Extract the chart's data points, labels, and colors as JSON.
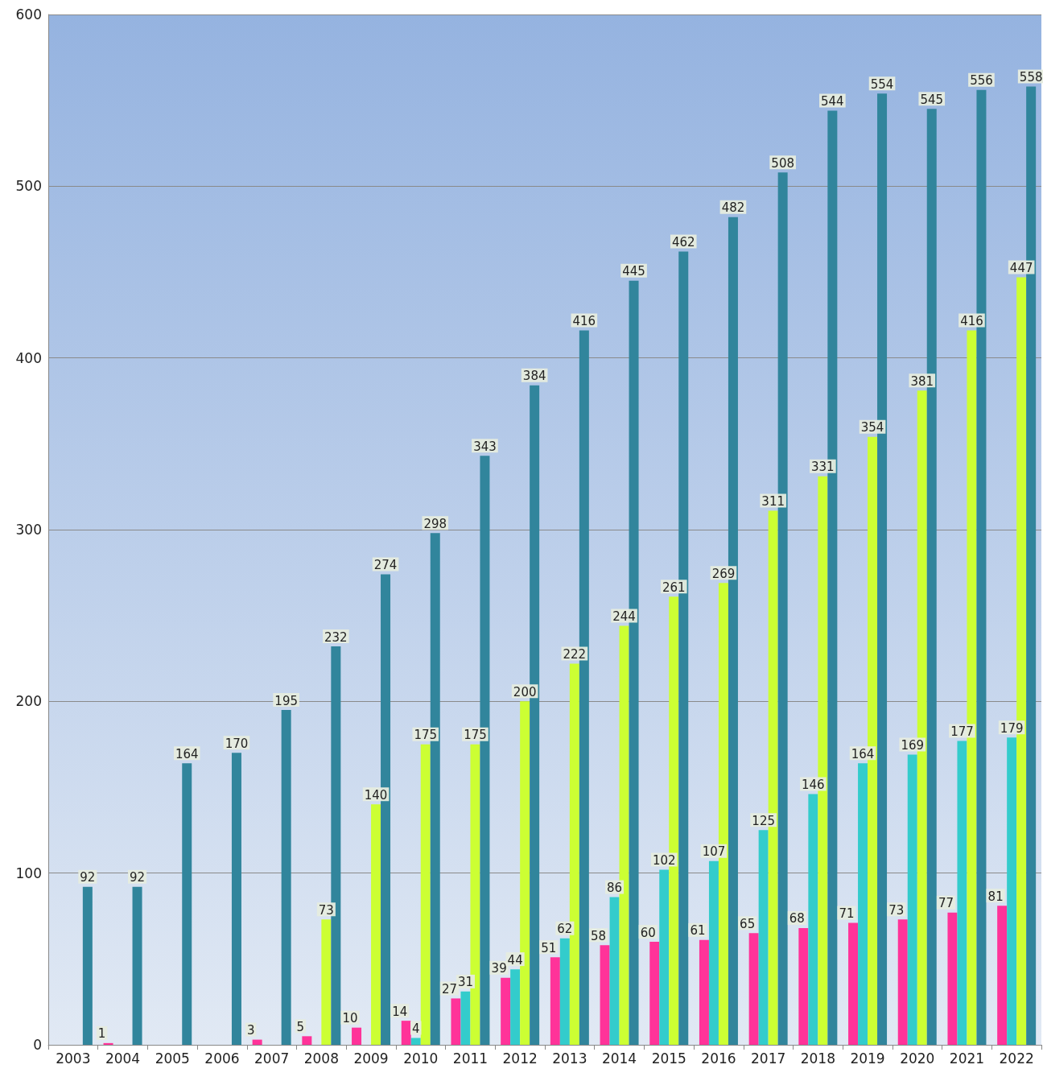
{
  "chart_data": {
    "type": "bar",
    "categories": [
      "2003",
      "2004",
      "2005",
      "2006",
      "2007",
      "2008",
      "2009",
      "2010",
      "2011",
      "2012",
      "2013",
      "2014",
      "2015",
      "2016",
      "2017",
      "2018",
      "2019",
      "2020",
      "2021",
      "2022"
    ],
    "series": [
      {
        "color": "#ff3399",
        "values": [
          null,
          1,
          null,
          null,
          3,
          5,
          10,
          14,
          27,
          39,
          51,
          58,
          60,
          61,
          65,
          68,
          71,
          73,
          77,
          81
        ]
      },
      {
        "color": "#33cccc",
        "values": [
          null,
          null,
          null,
          null,
          null,
          null,
          null,
          4,
          31,
          44,
          62,
          86,
          102,
          107,
          125,
          146,
          164,
          169,
          177,
          179
        ]
      },
      {
        "color": "#ccff33",
        "values": [
          null,
          null,
          null,
          null,
          null,
          73,
          140,
          175,
          175,
          200,
          222,
          244,
          261,
          269,
          311,
          331,
          354,
          381,
          416,
          447
        ]
      },
      {
        "color": "#31859c",
        "values": [
          92,
          92,
          164,
          170,
          195,
          232,
          274,
          298,
          343,
          384,
          416,
          445,
          462,
          482,
          508,
          544,
          554,
          545,
          556,
          558
        ]
      }
    ],
    "ylim": [
      0,
      600
    ],
    "yticks": [
      0,
      100,
      200,
      300,
      400,
      500,
      600
    ],
    "grid": "y",
    "data_labels": true
  }
}
